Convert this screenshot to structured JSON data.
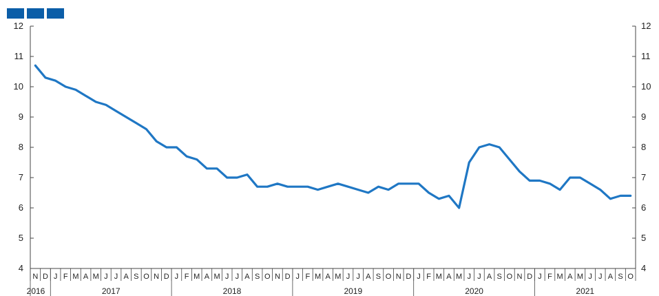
{
  "colors": {
    "line": "#1f77c4",
    "axis": "#444444",
    "logo": "#0b5ea8"
  },
  "logo_icon": "three-blue-squares",
  "chart_data": {
    "type": "line",
    "ylim": [
      4,
      12
    ],
    "yticks": [
      "4",
      "5",
      "6",
      "7",
      "8",
      "9",
      "10",
      "11",
      "12"
    ],
    "month_labels": [
      "N",
      "D",
      "J",
      "F",
      "M",
      "A",
      "M",
      "J",
      "J",
      "A",
      "S",
      "O",
      "N",
      "D",
      "J",
      "F",
      "M",
      "A",
      "M",
      "J",
      "J",
      "A",
      "S",
      "O",
      "N",
      "D",
      "J",
      "F",
      "M",
      "A",
      "M",
      "J",
      "J",
      "A",
      "S",
      "O",
      "N",
      "D",
      "J",
      "F",
      "M",
      "A",
      "M",
      "J",
      "J",
      "A",
      "S",
      "O",
      "N",
      "D",
      "J",
      "F",
      "M",
      "A",
      "M",
      "J",
      "J",
      "A",
      "S",
      "O"
    ],
    "year_labels": [
      "2016",
      "2017",
      "2018",
      "2019",
      "2020",
      "2021"
    ],
    "grid": false,
    "series": [
      {
        "values": [
          10.7,
          10.3,
          10.2,
          10.0,
          9.9,
          9.7,
          9.5,
          9.4,
          9.2,
          9.0,
          8.8,
          8.6,
          8.2,
          8.0,
          8.0,
          7.7,
          7.6,
          7.3,
          7.3,
          7.0,
          7.0,
          7.1,
          6.7,
          6.7,
          6.8,
          6.7,
          6.7,
          6.7,
          6.6,
          6.7,
          6.8,
          6.7,
          6.6,
          6.5,
          6.7,
          6.6,
          6.8,
          6.8,
          6.8,
          6.5,
          6.3,
          6.4,
          6.0,
          7.5,
          8.0,
          8.1,
          8.0,
          7.6,
          7.2,
          6.9,
          6.9,
          6.8,
          6.6,
          7.0,
          7.0,
          6.8,
          6.6,
          6.3,
          6.4,
          6.4
        ]
      }
    ]
  }
}
